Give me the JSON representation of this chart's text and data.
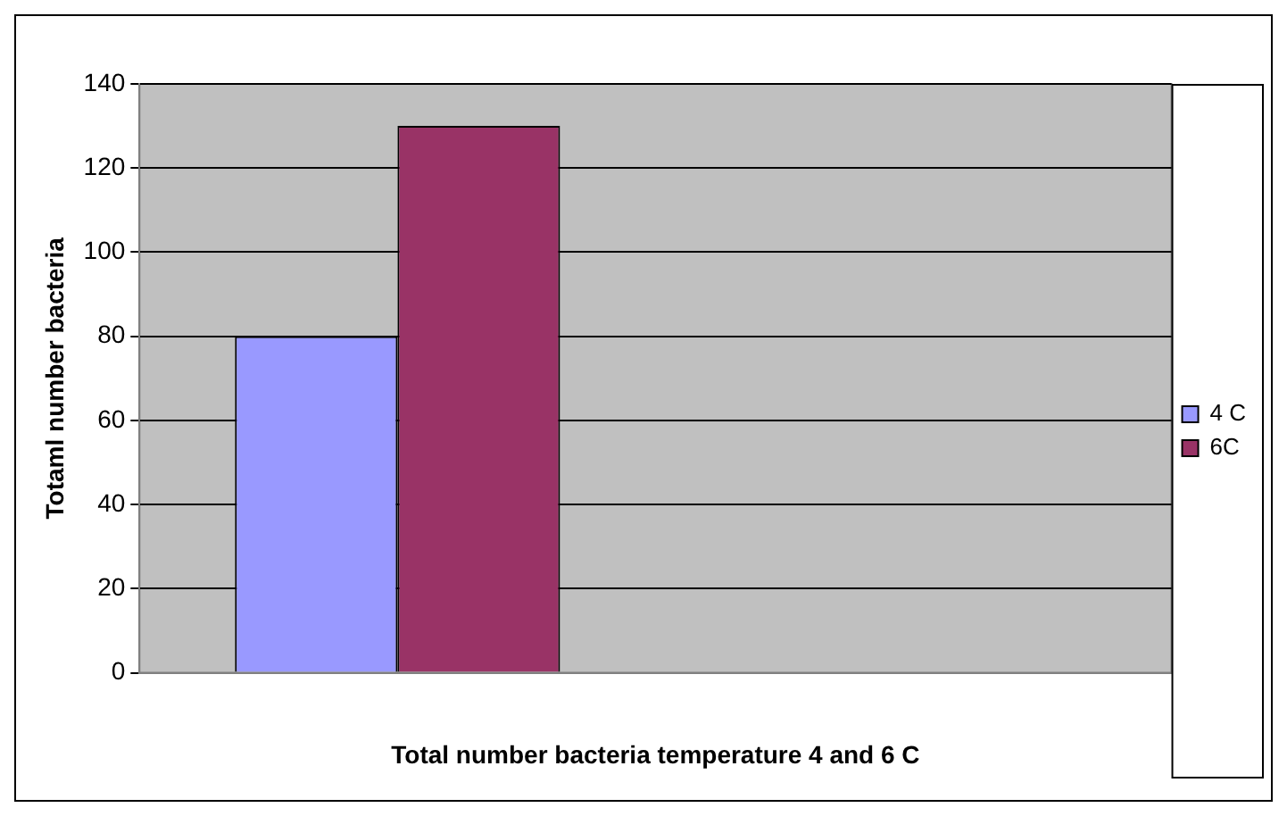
{
  "chart_data": {
    "type": "bar",
    "xlabel": "Total number bacteria temperature 4 and 6 C",
    "ylabel": "Totaml number bacteria",
    "categories": [
      null,
      null
    ],
    "series": [
      {
        "name": "4 C",
        "color": "#9999ff",
        "values": [
          80,
          null
        ]
      },
      {
        "name": "6C",
        "color": "#993366",
        "values": [
          130,
          null
        ]
      }
    ],
    "ylim": [
      0,
      140
    ],
    "yticks": [
      0,
      20,
      40,
      60,
      80,
      100,
      120,
      140
    ],
    "grid": "y",
    "legend": "right"
  }
}
